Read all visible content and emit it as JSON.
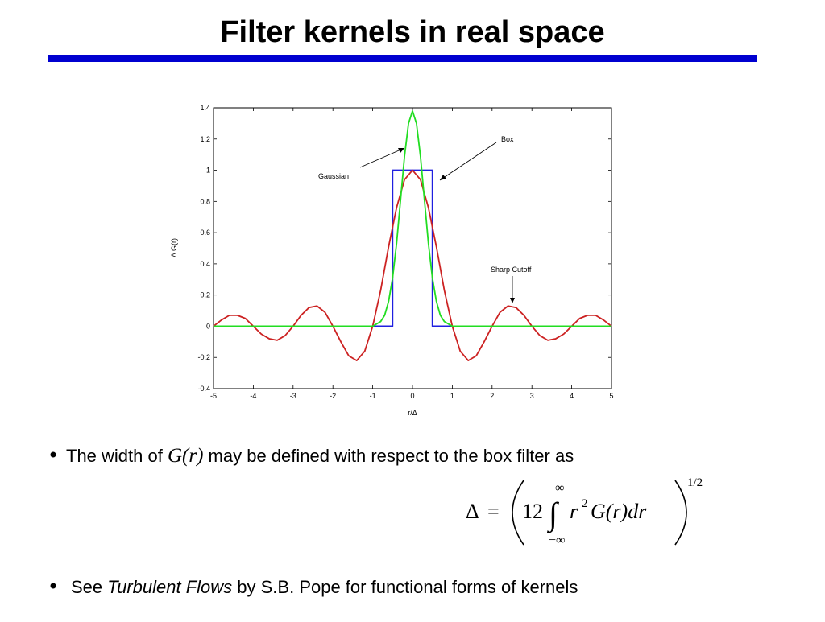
{
  "slide_title": "Filter kernels in real space",
  "chart_data": {
    "type": "line",
    "xlabel": "r/Δ",
    "ylabel": "Δ G(r)",
    "xlim": [
      -5,
      5
    ],
    "ylim": [
      -0.4,
      1.4
    ],
    "xticks": [
      -5,
      -4,
      -3,
      -2,
      -1,
      0,
      1,
      2,
      3,
      4,
      5
    ],
    "yticks": [
      -0.4,
      -0.2,
      0,
      0.2,
      0.4,
      0.6,
      0.8,
      1,
      1.2,
      1.4
    ],
    "grid": false,
    "series": [
      {
        "color": "#2020e0",
        "x": [
          -5,
          -0.5,
          -0.5,
          0.5,
          0.5,
          5
        ],
        "values": [
          0,
          0,
          1,
          1,
          0,
          0
        ]
      },
      {
        "color": "#cc2222",
        "x": [
          -5,
          -4.8,
          -4.6,
          -4.4,
          -4.2,
          -4,
          -3.8,
          -3.6,
          -3.4,
          -3.2,
          -3,
          -2.8,
          -2.6,
          -2.4,
          -2.2,
          -2,
          -1.8,
          -1.6,
          -1.4,
          -1.2,
          -1,
          -0.8,
          -0.6,
          -0.4,
          -0.2,
          0,
          0.2,
          0.4,
          0.6,
          0.8,
          1,
          1.2,
          1.4,
          1.6,
          1.8,
          2,
          2.2,
          2.4,
          2.6,
          2.8,
          3,
          3.2,
          3.4,
          3.6,
          3.8,
          4,
          4.2,
          4.4,
          4.6,
          4.8,
          5
        ],
        "values": [
          0,
          0.04,
          0.07,
          0.07,
          0.05,
          0,
          -0.05,
          -0.08,
          -0.09,
          -0.06,
          0,
          0.07,
          0.12,
          0.13,
          0.09,
          0,
          -0.1,
          -0.19,
          -0.22,
          -0.16,
          0,
          0.23,
          0.51,
          0.76,
          0.94,
          1,
          0.94,
          0.76,
          0.51,
          0.23,
          0,
          -0.16,
          -0.22,
          -0.19,
          -0.1,
          0,
          0.09,
          0.13,
          0.12,
          0.07,
          0,
          -0.06,
          -0.09,
          -0.08,
          -0.05,
          0,
          0.05,
          0.07,
          0.07,
          0.04,
          0
        ]
      },
      {
        "color": "#22dd22",
        "x": [
          -5,
          -1,
          -0.8,
          -0.7,
          -0.6,
          -0.5,
          -0.4,
          -0.3,
          -0.2,
          -0.1,
          0,
          0.1,
          0.2,
          0.3,
          0.4,
          0.5,
          0.6,
          0.7,
          0.8,
          1,
          5
        ],
        "values": [
          0,
          0,
          0.03,
          0.07,
          0.16,
          0.31,
          0.53,
          0.81,
          1.09,
          1.3,
          1.38,
          1.3,
          1.09,
          0.81,
          0.53,
          0.31,
          0.16,
          0.07,
          0.03,
          0,
          0
        ]
      }
    ],
    "annotations": [
      "Gaussian",
      "Box",
      "Sharp Cutoff"
    ]
  },
  "bullets": [
    {
      "before": "The width of",
      "math": "G(r)",
      "after": "may be defined with respect to the box filter as"
    },
    {
      "before": "See",
      "italic": "Turbulent Flows",
      "after": "by S.B. Pope for functional forms of kernels"
    }
  ],
  "equation": {
    "lhs": "Δ",
    "equals": "=",
    "coefficient": "12",
    "integral": "∫",
    "upper": "∞",
    "lower": "−∞",
    "base": "r",
    "power": "2",
    "rest": "G(r)dr",
    "exponent": "1/2"
  }
}
